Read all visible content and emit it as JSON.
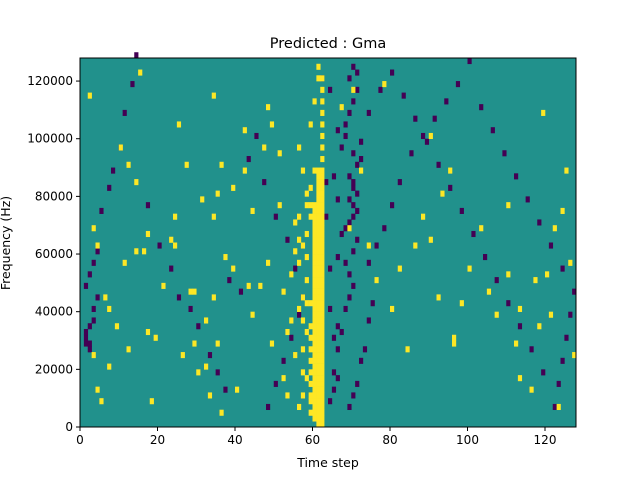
{
  "chart_data": {
    "type": "heatmap",
    "title": "Predicted : Gma",
    "xlabel": "Time step",
    "ylabel": "Frequency (Hz)",
    "xlim": [
      0,
      128
    ],
    "ylim": [
      0,
      128000
    ],
    "x_ticks": [
      0,
      20,
      40,
      60,
      80,
      100,
      120
    ],
    "y_ticks": [
      0,
      20000,
      40000,
      60000,
      80000,
      100000,
      120000
    ],
    "x_tick_labels": [
      "0",
      "20",
      "40",
      "60",
      "80",
      "100",
      "120"
    ],
    "y_tick_labels": [
      "0",
      "20000",
      "40000",
      "60000",
      "80000",
      "100000",
      "120000"
    ],
    "grid": false,
    "colormap": "viridis",
    "background_color": "#21918c",
    "high_color": "#fde725",
    "low_color": "#440154",
    "n_time_steps": 128,
    "n_freq_bins": 64,
    "freq_bin_size": 2000,
    "cells_high": [
      [
        61,
        0
      ],
      [
        62,
        0
      ],
      [
        60,
        1
      ],
      [
        61,
        1
      ],
      [
        62,
        1
      ],
      [
        59,
        2
      ],
      [
        60,
        2
      ],
      [
        61,
        2
      ],
      [
        62,
        2
      ],
      [
        60,
        3
      ],
      [
        61,
        3
      ],
      [
        62,
        3
      ],
      [
        59,
        4
      ],
      [
        60,
        4
      ],
      [
        61,
        4
      ],
      [
        62,
        4
      ],
      [
        59,
        5
      ],
      [
        60,
        5
      ],
      [
        61,
        5
      ],
      [
        62,
        5
      ],
      [
        60,
        6
      ],
      [
        61,
        6
      ],
      [
        62,
        6
      ],
      [
        59,
        7
      ],
      [
        60,
        7
      ],
      [
        61,
        7
      ],
      [
        62,
        7
      ],
      [
        60,
        8
      ],
      [
        61,
        8
      ],
      [
        62,
        8
      ],
      [
        59,
        9
      ],
      [
        60,
        9
      ],
      [
        61,
        9
      ],
      [
        62,
        9
      ],
      [
        60,
        10
      ],
      [
        61,
        10
      ],
      [
        62,
        10
      ],
      [
        59,
        11
      ],
      [
        60,
        11
      ],
      [
        61,
        11
      ],
      [
        62,
        11
      ],
      [
        60,
        12
      ],
      [
        61,
        12
      ],
      [
        62,
        12
      ],
      [
        59,
        13
      ],
      [
        60,
        13
      ],
      [
        61,
        13
      ],
      [
        62,
        13
      ],
      [
        60,
        14
      ],
      [
        61,
        14
      ],
      [
        62,
        14
      ],
      [
        59,
        15
      ],
      [
        60,
        15
      ],
      [
        61,
        15
      ],
      [
        62,
        15
      ],
      [
        60,
        16
      ],
      [
        61,
        16
      ],
      [
        62,
        16
      ],
      [
        59,
        17
      ],
      [
        60,
        17
      ],
      [
        61,
        17
      ],
      [
        62,
        17
      ],
      [
        60,
        18
      ],
      [
        61,
        18
      ],
      [
        62,
        18
      ],
      [
        60,
        19
      ],
      [
        61,
        19
      ],
      [
        62,
        19
      ],
      [
        60,
        20
      ],
      [
        61,
        20
      ],
      [
        62,
        20
      ],
      [
        59,
        21
      ],
      [
        60,
        21
      ],
      [
        61,
        21
      ],
      [
        62,
        21
      ],
      [
        60,
        22
      ],
      [
        61,
        22
      ],
      [
        62,
        22
      ],
      [
        60,
        23
      ],
      [
        61,
        23
      ],
      [
        62,
        23
      ],
      [
        60,
        24
      ],
      [
        61,
        24
      ],
      [
        62,
        24
      ],
      [
        60,
        25
      ],
      [
        61,
        25
      ],
      [
        62,
        25
      ],
      [
        60,
        26
      ],
      [
        61,
        26
      ],
      [
        62,
        26
      ],
      [
        60,
        27
      ],
      [
        61,
        27
      ],
      [
        62,
        27
      ],
      [
        60,
        28
      ],
      [
        61,
        28
      ],
      [
        62,
        28
      ],
      [
        60,
        29
      ],
      [
        61,
        29
      ],
      [
        62,
        29
      ],
      [
        60,
        30
      ],
      [
        61,
        30
      ],
      [
        62,
        30
      ],
      [
        60,
        31
      ],
      [
        61,
        31
      ],
      [
        62,
        31
      ],
      [
        60,
        32
      ],
      [
        61,
        32
      ],
      [
        62,
        32
      ],
      [
        60,
        33
      ],
      [
        61,
        33
      ],
      [
        62,
        33
      ],
      [
        60,
        34
      ],
      [
        61,
        34
      ],
      [
        62,
        34
      ],
      [
        60,
        35
      ],
      [
        61,
        35
      ],
      [
        62,
        35
      ],
      [
        59,
        36
      ],
      [
        60,
        36
      ],
      [
        61,
        36
      ],
      [
        62,
        36
      ],
      [
        60,
        37
      ],
      [
        61,
        37
      ],
      [
        62,
        37
      ],
      [
        59,
        38
      ],
      [
        60,
        38
      ],
      [
        61,
        38
      ],
      [
        62,
        38
      ],
      [
        61,
        39
      ],
      [
        62,
        39
      ],
      [
        61,
        40
      ],
      [
        62,
        40
      ],
      [
        61,
        41
      ],
      [
        62,
        41
      ],
      [
        61,
        42
      ],
      [
        62,
        42
      ],
      [
        61,
        43
      ],
      [
        62,
        43
      ],
      [
        61,
        44
      ],
      [
        62,
        44
      ],
      [
        62,
        46
      ],
      [
        62,
        48
      ],
      [
        62,
        50
      ],
      [
        62,
        52
      ],
      [
        62,
        54
      ],
      [
        62,
        56
      ],
      [
        62,
        58
      ],
      [
        61,
        60
      ],
      [
        62,
        60
      ],
      [
        61,
        62
      ],
      [
        57,
        5
      ],
      [
        58,
        8
      ],
      [
        57,
        13
      ],
      [
        58,
        16
      ],
      [
        56,
        20
      ],
      [
        57,
        22
      ],
      [
        58,
        25
      ],
      [
        56,
        28
      ],
      [
        57,
        31
      ],
      [
        58,
        33
      ],
      [
        55,
        12
      ],
      [
        54,
        18
      ],
      [
        56,
        36
      ],
      [
        55,
        30
      ],
      [
        54,
        26
      ],
      [
        58,
        40
      ],
      [
        57,
        44
      ],
      [
        56,
        48
      ],
      [
        59,
        52
      ],
      [
        60,
        56
      ],
      [
        56,
        3
      ],
      [
        57,
        9
      ],
      [
        57,
        18
      ],
      [
        58,
        21
      ],
      [
        58,
        29
      ],
      [
        56,
        32
      ],
      [
        55,
        35
      ],
      [
        58,
        38
      ],
      [
        59,
        41
      ],
      [
        60,
        44
      ],
      [
        4,
        31
      ],
      [
        3,
        12
      ],
      [
        12,
        13
      ],
      [
        12,
        45
      ],
      [
        11,
        28
      ],
      [
        17,
        16
      ],
      [
        19,
        15
      ],
      [
        24,
        36
      ],
      [
        23,
        32
      ],
      [
        26,
        12
      ],
      [
        28,
        23
      ],
      [
        29,
        23
      ],
      [
        32,
        10
      ],
      [
        33,
        5
      ],
      [
        32,
        18
      ],
      [
        34,
        22
      ],
      [
        35,
        14
      ],
      [
        37,
        29
      ],
      [
        36,
        45
      ],
      [
        39,
        27
      ],
      [
        43,
        24
      ],
      [
        44,
        19
      ],
      [
        44,
        37
      ],
      [
        49,
        14
      ],
      [
        51,
        38
      ],
      [
        46,
        24
      ],
      [
        52,
        23
      ],
      [
        53,
        16
      ],
      [
        52,
        8
      ],
      [
        53,
        5
      ],
      [
        6,
        22
      ],
      [
        7,
        20
      ],
      [
        9,
        17
      ],
      [
        14,
        42
      ],
      [
        16,
        30
      ],
      [
        17,
        33
      ],
      [
        67,
        55
      ],
      [
        70,
        58
      ],
      [
        69,
        34
      ],
      [
        72,
        44
      ],
      [
        74,
        31
      ],
      [
        76,
        25
      ],
      [
        80,
        20
      ],
      [
        84,
        13
      ],
      [
        82,
        27
      ],
      [
        86,
        31
      ],
      [
        88,
        36
      ],
      [
        90,
        32
      ],
      [
        92,
        22
      ],
      [
        96,
        14
      ],
      [
        98,
        21
      ],
      [
        100,
        27
      ],
      [
        103,
        34
      ],
      [
        107,
        19
      ],
      [
        110,
        26
      ],
      [
        112,
        14
      ],
      [
        113,
        8
      ],
      [
        116,
        6
      ],
      [
        117,
        25
      ],
      [
        121,
        19
      ],
      [
        120,
        26
      ],
      [
        123,
        3
      ],
      [
        122,
        34
      ],
      [
        124,
        37
      ],
      [
        126,
        28
      ],
      [
        127,
        12
      ],
      [
        125,
        44
      ],
      [
        119,
        54
      ],
      [
        118,
        17
      ],
      [
        113,
        20
      ],
      [
        39,
        41
      ],
      [
        42,
        51
      ],
      [
        51,
        47
      ],
      [
        49,
        52
      ],
      [
        47,
        48
      ],
      [
        42,
        44
      ],
      [
        36,
        2
      ],
      [
        34,
        36
      ],
      [
        90,
        50
      ],
      [
        93,
        40
      ],
      [
        96,
        15
      ],
      [
        105,
        23
      ],
      [
        7,
        10
      ],
      [
        14,
        30
      ],
      [
        18,
        4
      ],
      [
        21,
        24
      ],
      [
        24,
        31
      ],
      [
        29,
        14
      ],
      [
        31,
        39
      ],
      [
        27,
        45
      ],
      [
        30,
        9
      ],
      [
        35,
        40
      ],
      [
        40,
        6
      ],
      [
        48,
        28
      ],
      [
        5,
        4
      ],
      [
        4,
        6
      ],
      [
        3,
        34
      ],
      [
        2,
        57
      ],
      [
        10,
        48
      ],
      [
        15,
        61
      ],
      [
        25,
        52
      ],
      [
        34,
        57
      ],
      [
        48,
        55
      ],
      [
        78,
        59
      ],
      [
        95,
        44
      ],
      [
        110,
        38
      ]
    ],
    "cells_low": [
      [
        65,
        6
      ],
      [
        66,
        8
      ],
      [
        65,
        15
      ],
      [
        66,
        17
      ],
      [
        68,
        20
      ],
      [
        69,
        22
      ],
      [
        70,
        24
      ],
      [
        69,
        26
      ],
      [
        68,
        28
      ],
      [
        70,
        30
      ],
      [
        71,
        32
      ],
      [
        69,
        35
      ],
      [
        70,
        36
      ],
      [
        71,
        37
      ],
      [
        70,
        38
      ],
      [
        69,
        39
      ],
      [
        71,
        40
      ],
      [
        70,
        41
      ],
      [
        69,
        43
      ],
      [
        71,
        45
      ],
      [
        70,
        47
      ],
      [
        72,
        49
      ],
      [
        68,
        52
      ],
      [
        69,
        54
      ],
      [
        70,
        56
      ],
      [
        71,
        58
      ],
      [
        69,
        60
      ],
      [
        70,
        62
      ],
      [
        71,
        61
      ],
      [
        68,
        50
      ],
      [
        72,
        46
      ],
      [
        70,
        42
      ],
      [
        68,
        34
      ],
      [
        67,
        16
      ],
      [
        66,
        13
      ],
      [
        65,
        9
      ],
      [
        64,
        4
      ],
      [
        69,
        3
      ],
      [
        70,
        5
      ],
      [
        71,
        7
      ],
      [
        72,
        11
      ],
      [
        73,
        13
      ],
      [
        74,
        18
      ],
      [
        75,
        21
      ],
      [
        1,
        14
      ],
      [
        1,
        15
      ],
      [
        1,
        16
      ],
      [
        2,
        13
      ],
      [
        2,
        14
      ],
      [
        2,
        17
      ],
      [
        3,
        18
      ],
      [
        3,
        20
      ],
      [
        4,
        22
      ],
      [
        1,
        24
      ],
      [
        2,
        26
      ],
      [
        3,
        28
      ],
      [
        4,
        30
      ],
      [
        5,
        37
      ],
      [
        7,
        41
      ],
      [
        8,
        44
      ],
      [
        10,
        48
      ],
      [
        11,
        54
      ],
      [
        13,
        59
      ],
      [
        14,
        64
      ],
      [
        17,
        38
      ],
      [
        20,
        31
      ],
      [
        23,
        27
      ],
      [
        25,
        22
      ],
      [
        28,
        20
      ],
      [
        30,
        17
      ],
      [
        33,
        12
      ],
      [
        35,
        9
      ],
      [
        37,
        6
      ],
      [
        38,
        25
      ],
      [
        41,
        23
      ],
      [
        43,
        46
      ],
      [
        45,
        50
      ],
      [
        47,
        42
      ],
      [
        50,
        36
      ],
      [
        53,
        32
      ],
      [
        55,
        27
      ],
      [
        57,
        22
      ],
      [
        56,
        19
      ],
      [
        54,
        15
      ],
      [
        52,
        11
      ],
      [
        50,
        7
      ],
      [
        48,
        3
      ],
      [
        74,
        28
      ],
      [
        76,
        31
      ],
      [
        78,
        34
      ],
      [
        80,
        38
      ],
      [
        82,
        42
      ],
      [
        85,
        47
      ],
      [
        88,
        50
      ],
      [
        91,
        53
      ],
      [
        94,
        56
      ],
      [
        97,
        59
      ],
      [
        100,
        63
      ],
      [
        103,
        55
      ],
      [
        106,
        51
      ],
      [
        109,
        47
      ],
      [
        112,
        43
      ],
      [
        115,
        39
      ],
      [
        118,
        35
      ],
      [
        121,
        31
      ],
      [
        124,
        27
      ],
      [
        127,
        23
      ],
      [
        126,
        19
      ],
      [
        125,
        15
      ],
      [
        124,
        11
      ],
      [
        123,
        7
      ],
      [
        122,
        3
      ],
      [
        119,
        9
      ],
      [
        116,
        13
      ],
      [
        113,
        17
      ],
      [
        110,
        21
      ],
      [
        107,
        25
      ],
      [
        104,
        29
      ],
      [
        101,
        33
      ],
      [
        98,
        37
      ],
      [
        95,
        41
      ],
      [
        92,
        45
      ],
      [
        89,
        49
      ],
      [
        86,
        53
      ],
      [
        83,
        57
      ],
      [
        80,
        61
      ],
      [
        77,
        58
      ],
      [
        74,
        54
      ],
      [
        63,
        42
      ],
      [
        63,
        36
      ],
      [
        64,
        27
      ],
      [
        64,
        20
      ],
      [
        62,
        60
      ],
      [
        64,
        58
      ],
      [
        66,
        51
      ],
      [
        67,
        48
      ],
      [
        65,
        43
      ],
      [
        66,
        39
      ],
      [
        67,
        33
      ],
      [
        66,
        29
      ]
    ]
  }
}
